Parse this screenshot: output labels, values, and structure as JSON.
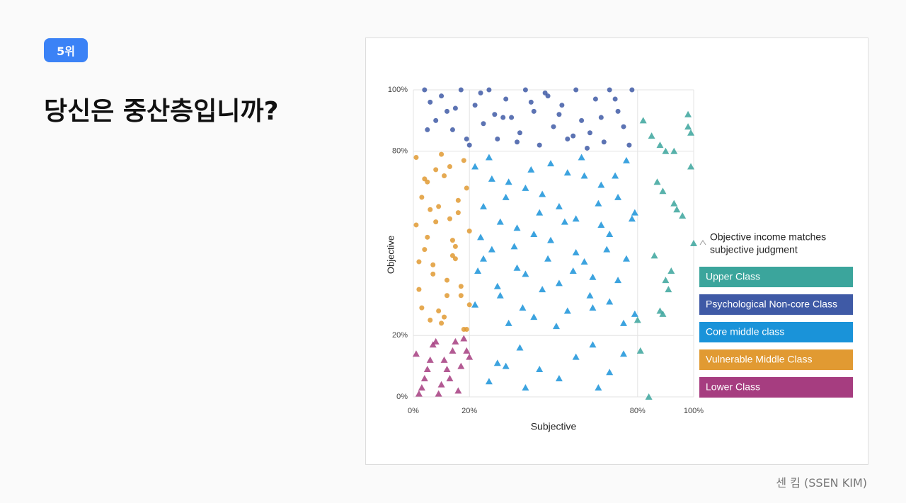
{
  "badge": "5위",
  "title": "당신은 중산층입니까?",
  "credit": "센 킴 (SSEN KIM)",
  "chart_data": {
    "type": "scatter",
    "x_label": "Subjective",
    "y_label": "Objective",
    "annotation_lines": [
      "Objective income matches",
      "subjective judgment"
    ],
    "xlim": [
      0,
      100
    ],
    "ylim": [
      0,
      100
    ],
    "grid": true,
    "xticks": [
      {
        "value": 0,
        "label": "0%"
      },
      {
        "value": 20,
        "label": "20%"
      },
      {
        "value": 80,
        "label": "80%"
      },
      {
        "value": 100,
        "label": "100%"
      }
    ],
    "yticks": [
      {
        "value": 0,
        "label": "0%"
      },
      {
        "value": 20,
        "label": "20%"
      },
      {
        "value": 80,
        "label": "80%"
      },
      {
        "value": 100,
        "label": "100%"
      }
    ],
    "series": [
      {
        "name": "Upper Class",
        "color": "#3ba59c",
        "marker": "triangle",
        "x": [
          82,
          85,
          88,
          90,
          93,
          98,
          98,
          99,
          87,
          89,
          93,
          94,
          96,
          99,
          100,
          90,
          92,
          91,
          86,
          88,
          89,
          84,
          80,
          81
        ],
        "y": [
          90,
          85,
          82,
          80,
          80,
          92,
          88,
          86,
          70,
          67,
          63,
          61,
          59,
          75,
          50,
          38,
          41,
          35,
          46,
          28,
          27,
          0,
          25,
          15
        ]
      },
      {
        "name": "Psychological Non-core Class",
        "color": "#3f5aa6",
        "marker": "circle",
        "x": [
          4,
          6,
          8,
          10,
          12,
          14,
          17,
          20,
          22,
          25,
          27,
          30,
          33,
          35,
          38,
          40,
          43,
          45,
          48,
          50,
          53,
          55,
          58,
          60,
          63,
          65,
          68,
          70,
          73,
          75,
          78,
          5,
          15,
          24,
          32,
          42,
          52,
          62,
          72,
          19,
          29,
          37,
          47,
          57,
          67,
          77
        ],
        "y": [
          100,
          96,
          90,
          98,
          93,
          87,
          100,
          82,
          95,
          89,
          100,
          84,
          97,
          91,
          86,
          100,
          93,
          82,
          98,
          88,
          95,
          84,
          100,
          90,
          86,
          97,
          83,
          100,
          93,
          88,
          100,
          87,
          94,
          99,
          91,
          96,
          92,
          81,
          97,
          84,
          92,
          83,
          99,
          85,
          91,
          82
        ]
      },
      {
        "name": "Core middle class",
        "color": "#1a93d9",
        "marker": "triangle",
        "x": [
          22,
          25,
          28,
          31,
          34,
          37,
          40,
          43,
          46,
          49,
          52,
          55,
          58,
          61,
          64,
          67,
          70,
          73,
          76,
          79,
          22,
          25,
          28,
          31,
          34,
          37,
          40,
          43,
          46,
          49,
          52,
          55,
          58,
          61,
          64,
          67,
          70,
          73,
          76,
          79,
          24,
          27,
          30,
          33,
          36,
          39,
          42,
          45,
          48,
          51,
          54,
          57,
          60,
          63,
          66,
          69,
          72,
          75,
          78,
          23,
          30,
          38,
          45,
          52,
          58,
          64,
          70,
          75,
          27,
          40,
          66,
          33
        ],
        "y": [
          75,
          62,
          48,
          33,
          70,
          55,
          40,
          26,
          66,
          51,
          37,
          73,
          58,
          44,
          29,
          69,
          53,
          38,
          77,
          60,
          30,
          45,
          71,
          57,
          24,
          42,
          68,
          53,
          35,
          76,
          62,
          28,
          47,
          72,
          39,
          56,
          31,
          65,
          45,
          27,
          52,
          78,
          36,
          65,
          49,
          29,
          74,
          60,
          45,
          23,
          57,
          41,
          78,
          33,
          63,
          48,
          72,
          24,
          58,
          41,
          11,
          16,
          9,
          6,
          13,
          17,
          8,
          14,
          5,
          3,
          3,
          10
        ]
      },
      {
        "name": "Vulnerable Middle Class",
        "color": "#e19a32",
        "marker": "circle",
        "x": [
          1,
          3,
          5,
          7,
          9,
          11,
          13,
          15,
          17,
          19,
          2,
          4,
          6,
          8,
          10,
          12,
          14,
          16,
          18,
          20,
          1,
          3,
          5,
          7,
          9,
          11,
          13,
          15,
          17,
          19,
          2,
          4,
          6,
          8,
          10,
          12,
          14,
          16,
          18,
          20
        ],
        "y": [
          78,
          65,
          52,
          40,
          28,
          72,
          58,
          45,
          33,
          22,
          35,
          48,
          61,
          74,
          24,
          38,
          51,
          64,
          77,
          30,
          56,
          29,
          70,
          43,
          62,
          26,
          75,
          49,
          36,
          68,
          44,
          71,
          25,
          57,
          79,
          33,
          46,
          60,
          22,
          54
        ]
      },
      {
        "name": "Lower Class",
        "color": "#a63d80",
        "marker": "triangle",
        "x": [
          1,
          3,
          5,
          7,
          9,
          11,
          13,
          15,
          17,
          19,
          2,
          6,
          10,
          14,
          18,
          4,
          8,
          12,
          16,
          20
        ],
        "y": [
          14,
          3,
          9,
          17,
          1,
          12,
          6,
          18,
          10,
          15,
          1,
          12,
          4,
          15,
          19,
          6,
          18,
          9,
          2,
          13
        ]
      }
    ]
  }
}
